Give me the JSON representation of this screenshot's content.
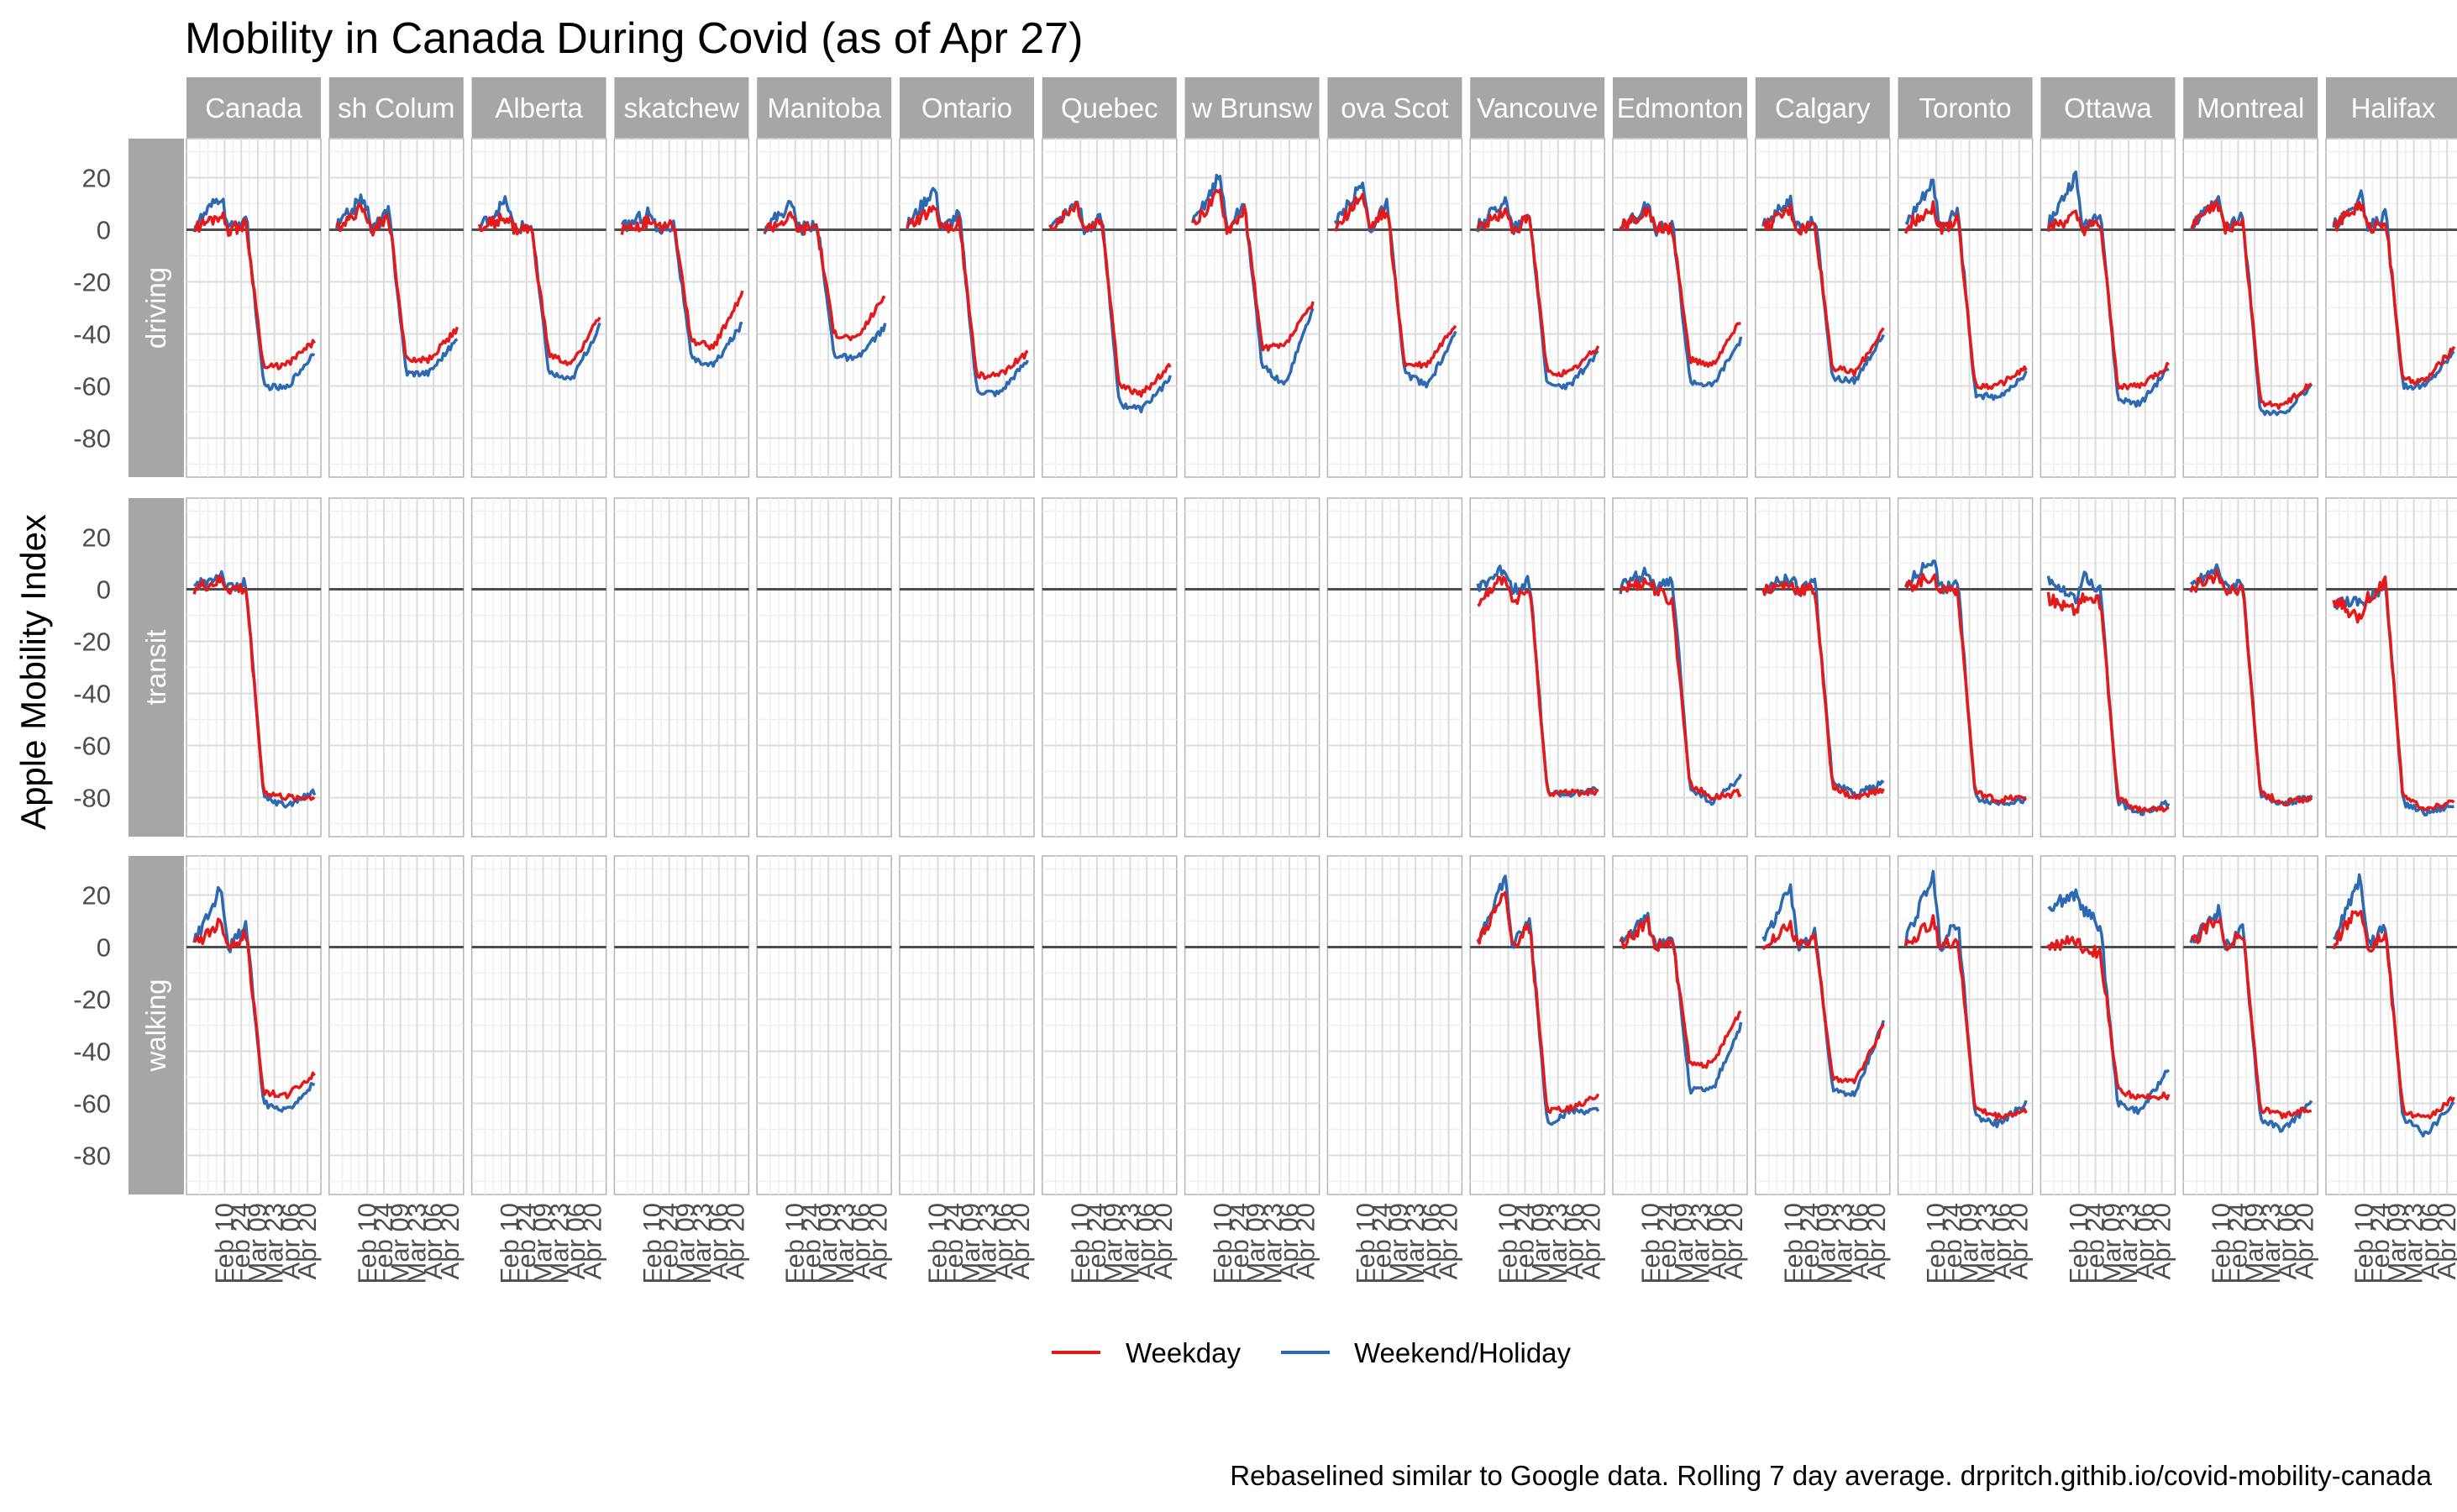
{
  "title": "Mobility in Canada During Covid (as of Apr 27)",
  "ylabel": "Apple Mobility Index",
  "caption": "Rebaselined similar to Google data. Rolling 7 day average. drpritch.githib.io/covid-mobility-canada",
  "colors": {
    "weekday": "#e31a1c",
    "weekend": "#2c69b0",
    "strip": "#a6a6a6",
    "zero_line": "#4d4d4d",
    "grid_major": "#dcdcdc",
    "grid_minor": "#efefef"
  },
  "chart_data": {
    "type": "line",
    "facet_columns": [
      "Canada",
      "British Columbia",
      "Alberta",
      "Saskatchewan",
      "Manitoba",
      "Ontario",
      "Quebec",
      "New Brunswick",
      "Nova Scotia",
      "Vancouver",
      "Edmonton",
      "Calgary",
      "Toronto",
      "Ottawa",
      "Montreal",
      "Halifax"
    ],
    "facet_column_labels": [
      "Canada",
      "sh Colum",
      "Alberta",
      "skatchew",
      "Manitoba",
      "Ontario",
      "Quebec",
      "w Brunsw",
      "ova Scot",
      "Vancouve",
      "Edmonton",
      "Calgary",
      "Toronto",
      "Ottawa",
      "Montreal",
      "Halifax"
    ],
    "facet_rows": [
      "driving",
      "transit",
      "walking"
    ],
    "x_tick_labels": [
      "Feb 10",
      "Feb 24",
      "Mar 09",
      "Mar 23",
      "Apr 06",
      "Apr 20"
    ],
    "x_range": [
      "Jan 13",
      "Apr 27"
    ],
    "ylim": [
      -95,
      35
    ],
    "y_ticks": [
      20,
      0,
      -20,
      -40,
      -60,
      -80
    ],
    "legend": {
      "position": "bottom",
      "entries": [
        "Weekday",
        "Weekend/Holiday"
      ]
    },
    "series_order": [
      "Weekday",
      "Weekend/Holiday"
    ],
    "curve_points_note": "Each series: [early-Feb level, peak, drop-start, drop-end (mid/late Mar), early Apr level, final (Apr 27) level], values in index units",
    "driving": {
      "Canada": {
        "Weekday": [
          0,
          6,
          2,
          -53,
          -52,
          -43
        ],
        "Weekend/Holiday": [
          0,
          13,
          5,
          -60,
          -61,
          -47
        ]
      },
      "British Columbia": {
        "Weekday": [
          0,
          9,
          5,
          -50,
          -50,
          -38
        ],
        "Weekend/Holiday": [
          0,
          13,
          7,
          -55,
          -55,
          -42
        ]
      },
      "Alberta": {
        "Weekday": [
          0,
          5,
          0,
          -48,
          -52,
          -33
        ],
        "Weekend/Holiday": [
          0,
          11,
          2,
          -55,
          -58,
          -37
        ]
      },
      "Saskatchewan": {
        "Weekday": [
          0,
          3,
          2,
          -43,
          -45,
          -24
        ],
        "Weekend/Holiday": [
          0,
          7,
          2,
          -50,
          -52,
          -36
        ]
      },
      "Manitoba": {
        "Weekday": [
          0,
          5,
          2,
          -40,
          -42,
          -25
        ],
        "Weekend/Holiday": [
          0,
          10,
          3,
          -48,
          -50,
          -37
        ]
      },
      "Ontario": {
        "Weekday": [
          0,
          8,
          3,
          -56,
          -56,
          -47
        ],
        "Weekend/Holiday": [
          0,
          16,
          6,
          -62,
          -63,
          -50
        ]
      },
      "Quebec": {
        "Weekday": [
          0,
          10,
          4,
          -60,
          -63,
          -52
        ],
        "Weekend/Holiday": [
          0,
          11,
          5,
          -67,
          -69,
          -57
        ]
      },
      "New Brunswick": {
        "Weekday": [
          0,
          15,
          8,
          -45,
          -45,
          -28
        ],
        "Weekend/Holiday": [
          0,
          21,
          10,
          -52,
          -60,
          -30
        ]
      },
      "Nova Scotia": {
        "Weekday": [
          0,
          13,
          8,
          -52,
          -52,
          -36
        ],
        "Weekend/Holiday": [
          0,
          18,
          10,
          -55,
          -60,
          -40
        ]
      },
      "Vancouver": {
        "Weekday": [
          0,
          7,
          4,
          -55,
          -55,
          -45
        ],
        "Weekend/Holiday": [
          0,
          12,
          6,
          -60,
          -60,
          -47
        ]
      },
      "Edmonton": {
        "Weekday": [
          0,
          7,
          1,
          -50,
          -52,
          -35
        ],
        "Weekend/Holiday": [
          0,
          9,
          2,
          -58,
          -60,
          -42
        ]
      },
      "Calgary": {
        "Weekday": [
          0,
          8,
          2,
          -53,
          -55,
          -38
        ],
        "Weekend/Holiday": [
          0,
          12,
          4,
          -57,
          -58,
          -40
        ]
      },
      "Toronto": {
        "Weekday": [
          0,
          9,
          4,
          -60,
          -60,
          -53
        ],
        "Weekend/Holiday": [
          0,
          18,
          8,
          -63,
          -65,
          -55
        ]
      },
      "Ottawa": {
        "Weekday": [
          0,
          5,
          2,
          -60,
          -60,
          -52
        ],
        "Weekend/Holiday": [
          0,
          21,
          8,
          -65,
          -67,
          -53
        ]
      },
      "Montreal": {
        "Weekday": [
          0,
          10,
          3,
          -66,
          -68,
          -58
        ],
        "Weekend/Holiday": [
          0,
          11,
          5,
          -70,
          -71,
          -60
        ]
      },
      "Halifax": {
        "Weekday": [
          0,
          10,
          4,
          -58,
          -58,
          -45
        ],
        "Weekend/Holiday": [
          0,
          13,
          6,
          -60,
          -60,
          -47
        ]
      }
    },
    "transit": {
      "Canada": {
        "Weekday": [
          0,
          3,
          0,
          -78,
          -80,
          -80
        ],
        "Weekend/Holiday": [
          0,
          6,
          2,
          -80,
          -83,
          -78
        ]
      },
      "Vancouver": {
        "Weekday": [
          -5,
          5,
          0,
          -78,
          -78,
          -78
        ],
        "Weekend/Holiday": [
          0,
          8,
          3,
          -78,
          -79,
          -77
        ]
      },
      "Edmonton": {
        "Weekday": [
          0,
          3,
          -5,
          -75,
          -80,
          -78
        ],
        "Weekend/Holiday": [
          0,
          7,
          3,
          -76,
          -82,
          -72
        ]
      },
      "Calgary": {
        "Weekday": [
          0,
          2,
          0,
          -76,
          -80,
          -77
        ],
        "Weekend/Holiday": [
          0,
          4,
          2,
          -74,
          -79,
          -74
        ]
      },
      "Toronto": {
        "Weekday": [
          0,
          5,
          0,
          -78,
          -81,
          -80
        ],
        "Weekend/Holiday": [
          0,
          12,
          3,
          -80,
          -82,
          -81
        ]
      },
      "Ottawa": {
        "Weekday": [
          -3,
          -8,
          -5,
          -80,
          -85,
          -84
        ],
        "Weekend/Holiday": [
          5,
          -5,
          0,
          -82,
          -86,
          -82
        ]
      },
      "Montreal": {
        "Weekday": [
          0,
          5,
          0,
          -78,
          -82,
          -80
        ],
        "Weekend/Holiday": [
          0,
          8,
          3,
          -80,
          -82,
          -80
        ]
      },
      "Halifax": {
        "Weekday": [
          -3,
          -12,
          3,
          -80,
          -84,
          -82
        ],
        "Weekend/Holiday": [
          -5,
          -5,
          3,
          -82,
          -86,
          -83
        ]
      }
    },
    "walking": {
      "Canada": {
        "Weekday": [
          0,
          10,
          5,
          -56,
          -57,
          -49
        ],
        "Weekend/Holiday": [
          0,
          23,
          8,
          -60,
          -63,
          -52
        ]
      },
      "Vancouver": {
        "Weekday": [
          0,
          20,
          8,
          -63,
          -62,
          -57
        ],
        "Weekend/Holiday": [
          0,
          27,
          10,
          -68,
          -63,
          -63
        ]
      },
      "Edmonton": {
        "Weekday": [
          0,
          10,
          2,
          -45,
          -45,
          -24
        ],
        "Weekend/Holiday": [
          0,
          12,
          5,
          -55,
          -55,
          -30
        ]
      },
      "Calgary": {
        "Weekday": [
          0,
          8,
          3,
          -50,
          -52,
          -30
        ],
        "Weekend/Holiday": [
          0,
          23,
          7,
          -55,
          -57,
          -28
        ]
      },
      "Toronto": {
        "Weekday": [
          0,
          10,
          3,
          -62,
          -65,
          -63
        ],
        "Weekend/Holiday": [
          0,
          28,
          10,
          -65,
          -68,
          -60
        ]
      },
      "Ottawa": {
        "Weekday": [
          0,
          3,
          -2,
          -55,
          -58,
          -57
        ],
        "Weekend/Holiday": [
          15,
          20,
          8,
          -60,
          -63,
          -47
        ]
      },
      "Montreal": {
        "Weekday": [
          0,
          12,
          5,
          -62,
          -65,
          -62
        ],
        "Weekend/Holiday": [
          0,
          14,
          7,
          -66,
          -70,
          -60
        ]
      },
      "Halifax": {
        "Weekday": [
          0,
          16,
          5,
          -63,
          -66,
          -58
        ],
        "Weekend/Holiday": [
          0,
          27,
          8,
          -66,
          -72,
          -60
        ]
      }
    }
  }
}
